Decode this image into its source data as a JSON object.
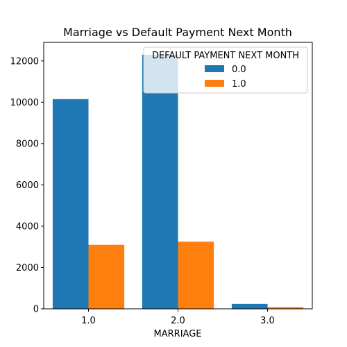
{
  "chart_data": {
    "type": "bar",
    "title": "Marriage vs Default Payment Next Month",
    "xlabel": "MARRIAGE",
    "ylabel": "",
    "categories": [
      "1.0",
      "2.0",
      "3.0"
    ],
    "series": [
      {
        "name": "0.0",
        "color": "#1f77b4",
        "values": [
          10150,
          12300,
          240
        ]
      },
      {
        "name": "1.0",
        "color": "#ff7f0e",
        "values": [
          3100,
          3250,
          80
        ]
      }
    ],
    "ylim": [
      0,
      12900
    ],
    "yticks": [
      0,
      2000,
      4000,
      6000,
      8000,
      10000,
      12000
    ],
    "ytick_labels": [
      "0",
      "2000",
      "4000",
      "6000",
      "8000",
      "10000",
      "12000"
    ],
    "legend": {
      "title": "DEFAULT PAYMENT NEXT MONTH",
      "placement": "top-right"
    },
    "grid": false
  }
}
